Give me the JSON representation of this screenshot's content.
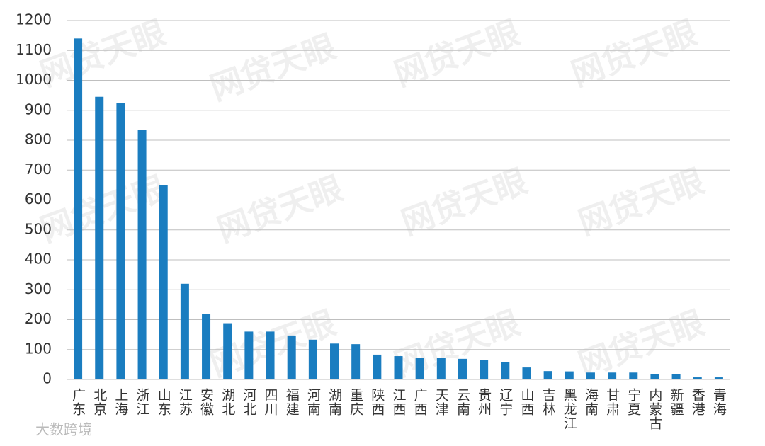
{
  "chart_data": {
    "type": "bar",
    "categories": [
      "广东",
      "北京",
      "上海",
      "浙江",
      "山东",
      "江苏",
      "安徽",
      "湖北",
      "河北",
      "四川",
      "福建",
      "河南",
      "湖南",
      "重庆",
      "陕西",
      "江西",
      "广西",
      "天津",
      "云南",
      "贵州",
      "辽宁",
      "山西",
      "吉林",
      "黑龙江",
      "海南",
      "甘肃",
      "宁夏",
      "内蒙古",
      "新疆",
      "香港",
      "青海"
    ],
    "values": [
      1140,
      945,
      925,
      835,
      650,
      320,
      220,
      188,
      160,
      160,
      147,
      133,
      120,
      118,
      83,
      78,
      73,
      73,
      69,
      64,
      59,
      40,
      28,
      27,
      23,
      23,
      23,
      18,
      18,
      7,
      7
    ],
    "color": "#1a7dc0",
    "ylim": [
      0,
      1200
    ],
    "yticks": [
      0,
      100,
      200,
      300,
      400,
      500,
      600,
      700,
      800,
      900,
      1000,
      1100,
      1200
    ],
    "grid": true,
    "watermark": "网贷天眼",
    "footer_logo": "大数跨境"
  }
}
